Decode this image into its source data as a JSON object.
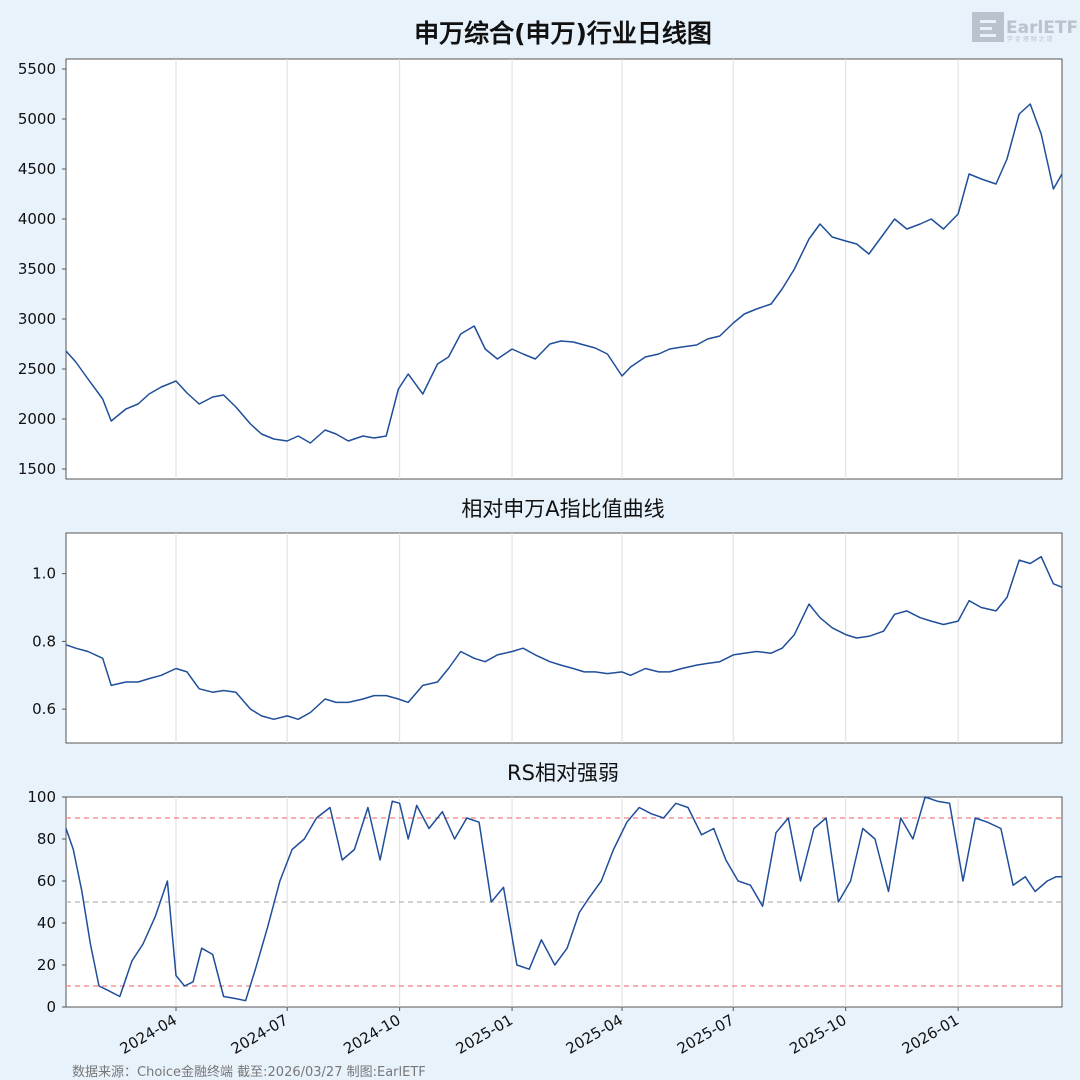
{
  "logo": {
    "text": "EarlETF",
    "subtext": "学 金 理 财 之 道"
  },
  "footer": "数据来源：Choice金融终端 截至:2026/03/27 制图:EarlETF",
  "colors": {
    "background": "#e8f2fb",
    "plot_background": "#ffffff",
    "line": "#1f4e9a",
    "grid": "#dddddd",
    "ref_extreme": "#f28080",
    "ref_mid": "#b8b8b8"
  },
  "chart_data": [
    {
      "type": "line",
      "title": "申万综合(申万)行业日线图",
      "yticks": [
        1500,
        2000,
        2500,
        3000,
        3500,
        4000,
        4500,
        5000,
        5500
      ],
      "ylim": [
        1400,
        5600
      ],
      "xlim": [
        "2024-01-02",
        "2026-03-27"
      ],
      "x_tick_dates": [
        "2024-04-01",
        "2024-07-01",
        "2024-10-01",
        "2025-01-01",
        "2025-04-01",
        "2025-07-01",
        "2025-10-01",
        "2026-01-01"
      ],
      "grid": "vertical",
      "series": [
        {
          "x": [
            "2024-01-02",
            "2024-01-10",
            "2024-01-20",
            "2024-02-01",
            "2024-02-08",
            "2024-02-20",
            "2024-03-01",
            "2024-03-10",
            "2024-03-20",
            "2024-04-01",
            "2024-04-10",
            "2024-04-20",
            "2024-05-01",
            "2024-05-10",
            "2024-05-20",
            "2024-06-01",
            "2024-06-10",
            "2024-06-20",
            "2024-07-01",
            "2024-07-10",
            "2024-07-20",
            "2024-08-01",
            "2024-08-10",
            "2024-08-20",
            "2024-09-01",
            "2024-09-10",
            "2024-09-20",
            "2024-09-30",
            "2024-10-08",
            "2024-10-20",
            "2024-11-01",
            "2024-11-10",
            "2024-11-20",
            "2024-12-01",
            "2024-12-10",
            "2024-12-20",
            "2025-01-01",
            "2025-01-10",
            "2025-01-20",
            "2025-02-01",
            "2025-02-10",
            "2025-02-20",
            "2025-03-01",
            "2025-03-10",
            "2025-03-20",
            "2025-04-01",
            "2025-04-08",
            "2025-04-20",
            "2025-05-01",
            "2025-05-10",
            "2025-05-20",
            "2025-06-01",
            "2025-06-10",
            "2025-06-20",
            "2025-07-01",
            "2025-07-10",
            "2025-07-20",
            "2025-08-01",
            "2025-08-10",
            "2025-08-20",
            "2025-09-01",
            "2025-09-10",
            "2025-09-20",
            "2025-10-01",
            "2025-10-10",
            "2025-10-20",
            "2025-11-01",
            "2025-11-10",
            "2025-11-20",
            "2025-12-01",
            "2025-12-10",
            "2025-12-20",
            "2026-01-01",
            "2026-01-10",
            "2026-01-20",
            "2026-02-01",
            "2026-02-10",
            "2026-02-20",
            "2026-03-01",
            "2026-03-10",
            "2026-03-20",
            "2026-03-27"
          ],
          "values": [
            2680,
            2570,
            2400,
            2200,
            1980,
            2100,
            2150,
            2250,
            2320,
            2380,
            2260,
            2150,
            2220,
            2240,
            2120,
            1950,
            1850,
            1800,
            1780,
            1830,
            1760,
            1890,
            1850,
            1780,
            1830,
            1810,
            1830,
            2300,
            2450,
            2250,
            2550,
            2620,
            2850,
            2930,
            2700,
            2600,
            2700,
            2650,
            2600,
            2750,
            2780,
            2770,
            2740,
            2710,
            2650,
            2430,
            2520,
            2620,
            2650,
            2700,
            2720,
            2740,
            2800,
            2830,
            2960,
            3050,
            3100,
            3150,
            3300,
            3500,
            3800,
            3950,
            3820,
            3780,
            3750,
            3650,
            3850,
            4000,
            3900,
            3950,
            4000,
            3900,
            4050,
            4450,
            4400,
            4350,
            4600,
            5050,
            5150,
            4850,
            4300,
            4450
          ]
        }
      ]
    },
    {
      "type": "line",
      "title": "相对申万A指比值曲线",
      "yticks": [
        0.6,
        0.8,
        1.0
      ],
      "ylim": [
        0.5,
        1.12
      ],
      "xlim": [
        "2024-01-02",
        "2026-03-27"
      ],
      "grid": "vertical",
      "series": [
        {
          "x": [
            "2024-01-02",
            "2024-01-10",
            "2024-01-20",
            "2024-02-01",
            "2024-02-08",
            "2024-02-20",
            "2024-03-01",
            "2024-03-10",
            "2024-03-20",
            "2024-04-01",
            "2024-04-10",
            "2024-04-20",
            "2024-05-01",
            "2024-05-10",
            "2024-05-20",
            "2024-06-01",
            "2024-06-10",
            "2024-06-20",
            "2024-07-01",
            "2024-07-10",
            "2024-07-20",
            "2024-08-01",
            "2024-08-10",
            "2024-08-20",
            "2024-09-01",
            "2024-09-10",
            "2024-09-20",
            "2024-09-30",
            "2024-10-08",
            "2024-10-20",
            "2024-11-01",
            "2024-11-10",
            "2024-11-20",
            "2024-12-01",
            "2024-12-10",
            "2024-12-20",
            "2025-01-01",
            "2025-01-10",
            "2025-01-20",
            "2025-02-01",
            "2025-02-10",
            "2025-02-20",
            "2025-03-01",
            "2025-03-10",
            "2025-03-20",
            "2025-04-01",
            "2025-04-08",
            "2025-04-20",
            "2025-05-01",
            "2025-05-10",
            "2025-05-20",
            "2025-06-01",
            "2025-06-10",
            "2025-06-20",
            "2025-07-01",
            "2025-07-10",
            "2025-07-20",
            "2025-08-01",
            "2025-08-10",
            "2025-08-20",
            "2025-09-01",
            "2025-09-10",
            "2025-09-20",
            "2025-10-01",
            "2025-10-10",
            "2025-10-20",
            "2025-11-01",
            "2025-11-10",
            "2025-11-20",
            "2025-12-01",
            "2025-12-10",
            "2025-12-20",
            "2026-01-01",
            "2026-01-10",
            "2026-01-20",
            "2026-02-01",
            "2026-02-10",
            "2026-02-20",
            "2026-03-01",
            "2026-03-10",
            "2026-03-20",
            "2026-03-27"
          ],
          "values": [
            0.79,
            0.78,
            0.77,
            0.75,
            0.67,
            0.68,
            0.68,
            0.69,
            0.7,
            0.72,
            0.71,
            0.66,
            0.65,
            0.655,
            0.65,
            0.6,
            0.58,
            0.57,
            0.58,
            0.57,
            0.59,
            0.63,
            0.62,
            0.62,
            0.63,
            0.64,
            0.64,
            0.63,
            0.62,
            0.67,
            0.68,
            0.72,
            0.77,
            0.75,
            0.74,
            0.76,
            0.77,
            0.78,
            0.76,
            0.74,
            0.73,
            0.72,
            0.71,
            0.71,
            0.705,
            0.71,
            0.7,
            0.72,
            0.71,
            0.71,
            0.72,
            0.73,
            0.735,
            0.74,
            0.76,
            0.765,
            0.77,
            0.765,
            0.78,
            0.82,
            0.91,
            0.87,
            0.84,
            0.82,
            0.81,
            0.815,
            0.83,
            0.88,
            0.89,
            0.87,
            0.86,
            0.85,
            0.86,
            0.92,
            0.9,
            0.89,
            0.93,
            1.04,
            1.03,
            1.05,
            0.97,
            0.96
          ]
        }
      ]
    },
    {
      "type": "line",
      "title": "RS相对强弱",
      "yticks": [
        0,
        20,
        40,
        60,
        80,
        100
      ],
      "ylim": [
        0,
        100
      ],
      "xlim": [
        "2024-01-02",
        "2026-03-27"
      ],
      "x_tick_labels": [
        "2024-04",
        "2024-07",
        "2024-10",
        "2025-01",
        "2025-04",
        "2025-07",
        "2025-10",
        "2026-01"
      ],
      "x_tick_dates": [
        "2024-04-01",
        "2024-07-01",
        "2024-10-01",
        "2025-01-01",
        "2025-04-01",
        "2025-07-01",
        "2025-10-01",
        "2026-01-01"
      ],
      "reference_lines": [
        90,
        50,
        10
      ],
      "grid": "vertical",
      "series": [
        {
          "x": [
            "2024-01-02",
            "2024-01-08",
            "2024-01-15",
            "2024-01-22",
            "2024-01-29",
            "2024-02-05",
            "2024-02-15",
            "2024-02-25",
            "2024-03-05",
            "2024-03-15",
            "2024-03-25",
            "2024-04-01",
            "2024-04-08",
            "2024-04-15",
            "2024-04-22",
            "2024-05-01",
            "2024-05-10",
            "2024-05-20",
            "2024-05-28",
            "2024-06-05",
            "2024-06-15",
            "2024-06-25",
            "2024-07-05",
            "2024-07-15",
            "2024-07-25",
            "2024-08-05",
            "2024-08-15",
            "2024-08-25",
            "2024-09-05",
            "2024-09-15",
            "2024-09-25",
            "2024-10-01",
            "2024-10-08",
            "2024-10-15",
            "2024-10-25",
            "2024-11-05",
            "2024-11-15",
            "2024-11-25",
            "2024-12-05",
            "2024-12-15",
            "2024-12-25",
            "2025-01-05",
            "2025-01-15",
            "2025-01-25",
            "2025-02-05",
            "2025-02-15",
            "2025-02-25",
            "2025-03-05",
            "2025-03-15",
            "2025-03-25",
            "2025-04-05",
            "2025-04-15",
            "2025-04-25",
            "2025-05-05",
            "2025-05-15",
            "2025-05-25",
            "2025-06-05",
            "2025-06-15",
            "2025-06-25",
            "2025-07-05",
            "2025-07-15",
            "2025-07-25",
            "2025-08-05",
            "2025-08-15",
            "2025-08-25",
            "2025-09-05",
            "2025-09-15",
            "2025-09-25",
            "2025-10-05",
            "2025-10-15",
            "2025-10-25",
            "2025-11-05",
            "2025-11-15",
            "2025-11-25",
            "2025-12-05",
            "2025-12-15",
            "2025-12-25",
            "2026-01-05",
            "2026-01-15",
            "2026-01-25",
            "2026-02-05",
            "2026-02-15",
            "2026-02-25",
            "2026-03-05",
            "2026-03-15",
            "2026-03-22",
            "2026-03-27"
          ],
          "values": [
            85,
            75,
            55,
            30,
            10,
            8,
            5,
            22,
            30,
            43,
            60,
            15,
            10,
            12,
            28,
            25,
            5,
            4,
            3,
            18,
            38,
            60,
            75,
            80,
            90,
            95,
            70,
            75,
            95,
            70,
            98,
            97,
            80,
            96,
            85,
            93,
            80,
            90,
            88,
            50,
            57,
            20,
            18,
            32,
            20,
            28,
            45,
            52,
            60,
            75,
            88,
            95,
            92,
            90,
            97,
            95,
            82,
            85,
            70,
            60,
            58,
            48,
            83,
            90,
            60,
            85,
            90,
            50,
            60,
            85,
            80,
            55,
            90,
            80,
            100,
            98,
            97,
            60,
            90,
            88,
            85,
            58,
            62,
            55,
            60,
            62,
            62
          ]
        }
      ]
    }
  ]
}
